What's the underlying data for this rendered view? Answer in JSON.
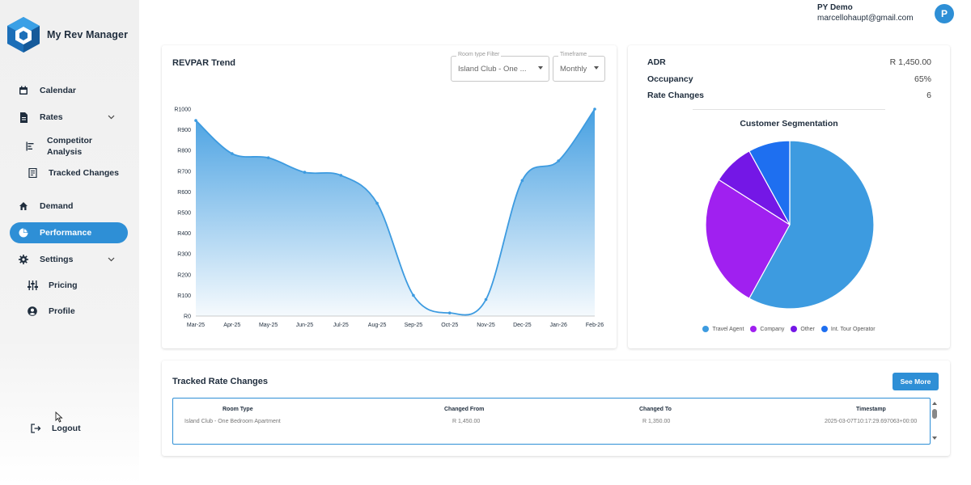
{
  "app": {
    "name": "My Rev Manager",
    "brand_color": "#2e8fd6"
  },
  "user": {
    "name": "PY Demo",
    "email": "marcellohaupt@gmail.com",
    "avatar_letter": "P"
  },
  "sidebar": {
    "items": [
      {
        "label": "Calendar",
        "icon": "calendar-icon"
      },
      {
        "label": "Rates",
        "icon": "document-icon",
        "expandable": true
      },
      {
        "label": "Competitor Analysis",
        "icon": "bar-chart-icon",
        "sub": true
      },
      {
        "label": "Tracked Changes",
        "icon": "receipt-icon",
        "sub": true
      },
      {
        "label": "Demand",
        "icon": "home-icon"
      },
      {
        "label": "Performance",
        "icon": "pie-chart-icon",
        "active": true
      },
      {
        "label": "Settings",
        "icon": "gear-icon",
        "expandable": true
      },
      {
        "label": "Pricing",
        "icon": "sliders-icon",
        "sub": true
      },
      {
        "label": "Profile",
        "icon": "account-icon",
        "sub": true
      }
    ],
    "logout_label": "Logout"
  },
  "revpar": {
    "title": "REVPAR Trend",
    "room_filter": {
      "legend": "Room type Filter",
      "value": "Island Club - One ..."
    },
    "timeframe": {
      "legend": "Timeframe",
      "value": "Monthly"
    }
  },
  "stats": {
    "adr_label": "ADR",
    "adr_value": "R 1,450.00",
    "occupancy_label": "Occupancy",
    "occupancy_value": "65%",
    "rate_changes_label": "Rate Changes",
    "rate_changes_value": "6"
  },
  "segmentation": {
    "title": "Customer Segmentation"
  },
  "tracked": {
    "title": "Tracked Rate Changes",
    "see_more": "See More",
    "columns": [
      "Room Type",
      "Changed From",
      "Changed To",
      "Timestamp"
    ],
    "rows": [
      [
        "Island Club - One Bedroom Apartment",
        "R 1,450.00",
        "R 1,350.00",
        "2025-03-07T10:17:29.697063+00:00"
      ]
    ]
  },
  "chart_data": [
    {
      "type": "area",
      "title": "REVPAR Trend",
      "categories": [
        "Mar-25",
        "Apr-25",
        "May-25",
        "Jun-25",
        "Jul-25",
        "Aug-25",
        "Sep-25",
        "Oct-25",
        "Nov-25",
        "Dec-25",
        "Jan-26",
        "Feb-26"
      ],
      "values": [
        945,
        785,
        765,
        695,
        680,
        545,
        100,
        15,
        80,
        655,
        750,
        1000
      ],
      "yticks": [
        "R0",
        "R100",
        "R200",
        "R300",
        "R400",
        "R500",
        "R600",
        "R700",
        "R800",
        "R900",
        "R1000"
      ],
      "ylim": [
        0,
        1000
      ],
      "color": "#3d9be0"
    },
    {
      "type": "pie",
      "title": "Customer Segmentation",
      "labels": [
        "Travel Agent",
        "Company",
        "Other",
        "Int. Tour Operator"
      ],
      "values": [
        58,
        26,
        8,
        8
      ],
      "colors": [
        "#3d9be0",
        "#a020f0",
        "#7417e6",
        "#1e6ff0"
      ]
    }
  ]
}
